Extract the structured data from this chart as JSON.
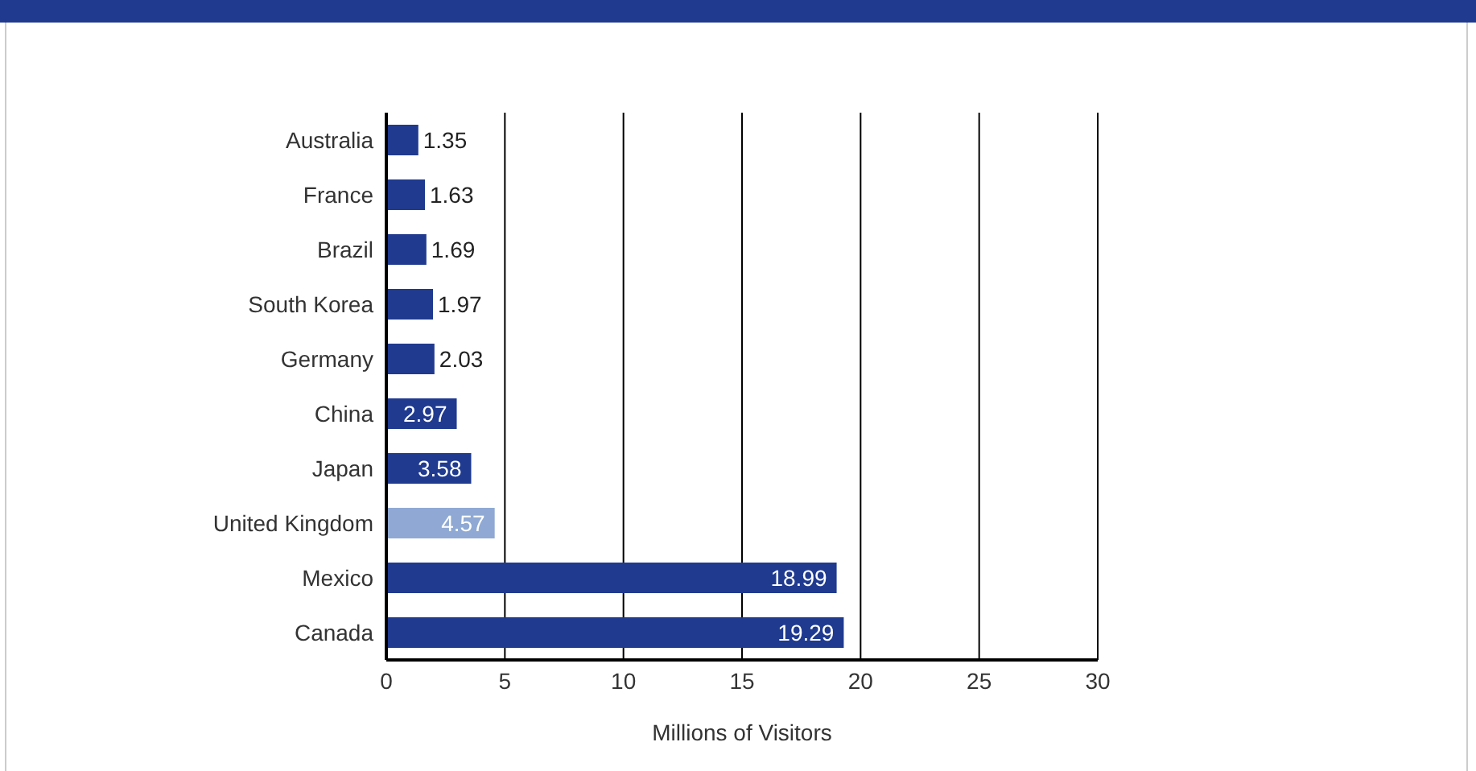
{
  "chart_data": {
    "type": "bar",
    "orientation": "horizontal",
    "xlabel": "Millions of Visitors",
    "categories": [
      "Australia",
      "France",
      "Brazil",
      "South Korea",
      "Germany",
      "China",
      "Japan",
      "United Kingdom",
      "Mexico",
      "Canada"
    ],
    "values": [
      1.35,
      1.63,
      1.69,
      1.97,
      2.03,
      2.97,
      3.58,
      4.57,
      18.99,
      19.29
    ],
    "colors": [
      "#1f3a8f",
      "#1f3a8f",
      "#1f3a8f",
      "#1f3a8f",
      "#1f3a8f",
      "#1f3a8f",
      "#1f3a8f",
      "#8fa9d4",
      "#1f3a8f",
      "#1f3a8f"
    ],
    "xlim": [
      0,
      30
    ],
    "xticks": [
      0,
      5,
      10,
      15,
      20,
      25,
      30
    ],
    "grid": "x",
    "data_labels": true,
    "legend": false
  }
}
